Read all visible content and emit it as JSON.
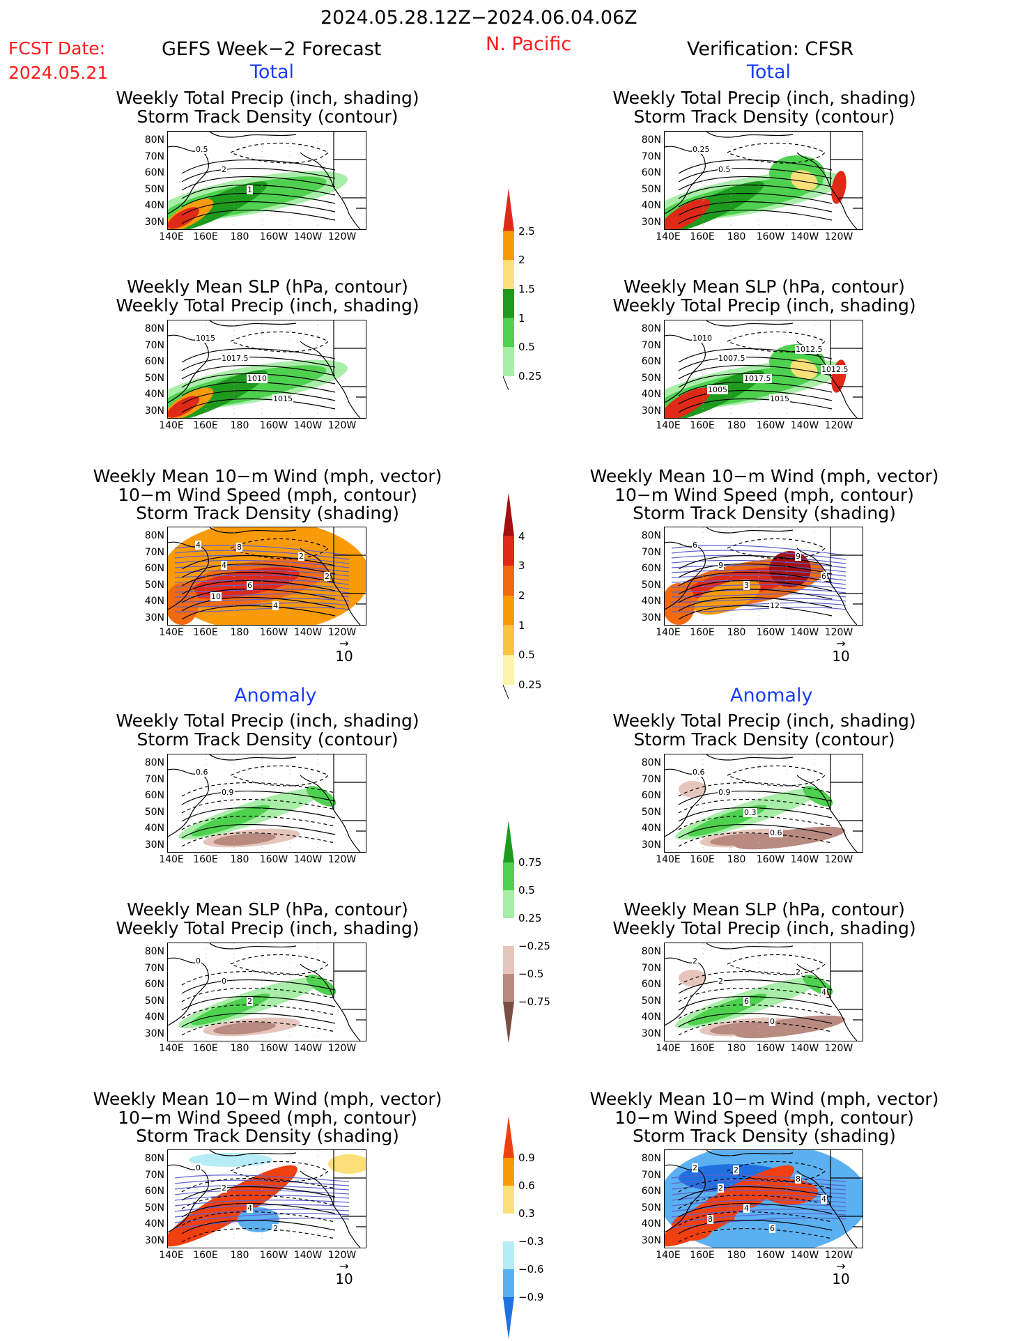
{
  "header": {
    "period": "2024.05.28.12Z−2024.06.04.06Z",
    "fcst_label": "FCST Date:",
    "fcst_date": "2024.05.21",
    "left_title": "GEFS Week−2 Forecast",
    "region": "N. Pacific",
    "right_title": "Verification: CFSR",
    "total": "Total",
    "anomaly": "Anomaly"
  },
  "panel_titles": {
    "precip_storm": [
      "Weekly Total Precip (inch, shading)",
      "Storm Track Density (contour)"
    ],
    "slp_precip": [
      "Weekly Mean SLP (hPa, contour)",
      "Weekly Total Precip (inch, shading)"
    ],
    "wind_storm": [
      "Weekly Mean 10−m Wind (mph, vector)",
      "10−m Wind Speed (mph, contour)",
      "Storm Track Density (shading)"
    ]
  },
  "axes": {
    "lat_labels": [
      "80N",
      "70N",
      "60N",
      "50N",
      "40N",
      "30N"
    ],
    "lon_labels": [
      "140E",
      "160E",
      "180",
      "160W",
      "140W",
      "120W"
    ]
  },
  "vector_ref": "10",
  "colorbars": {
    "precip_total": {
      "labels": [
        "2.5",
        "2",
        "1.5",
        "1",
        "0.5",
        "0.25"
      ],
      "colors": [
        "#e02a18",
        "#f99a08",
        "#fbe07a",
        "#1e9a1e",
        "#4ed14e",
        "#a8eea8"
      ]
    },
    "storm_total": {
      "labels": [
        "4",
        "3",
        "2",
        "1",
        "0.5",
        "0.25"
      ],
      "colors": [
        "#a50f0f",
        "#e02a18",
        "#f26a10",
        "#f99a08",
        "#fbc43c",
        "#fdf3a8"
      ]
    },
    "precip_anom": {
      "labels": [
        "0.75",
        "0.5",
        "0.25",
        "−0.25",
        "−0.5",
        "−0.75"
      ],
      "colors": [
        "#1e9a1e",
        "#4ed14e",
        "#a8eea8",
        "#ffffff",
        "#e6c6bc",
        "#b88a80",
        "#7a4e44"
      ]
    },
    "storm_anom": {
      "labels": [
        "0.9",
        "0.6",
        "0.3",
        "−0.3",
        "−0.6",
        "−0.9"
      ],
      "colors": [
        "#f04010",
        "#f99a08",
        "#fbe07a",
        "#ffffff",
        "#b6ecf6",
        "#5ab0f0",
        "#2070e0"
      ]
    }
  },
  "contour_labels": {
    "gefs_precip_total": [
      "0.5",
      "2",
      "1"
    ],
    "cfsr_precip_total": [
      "0.25",
      "0.5"
    ],
    "gefs_slp_total": [
      "1015",
      "1017.5",
      "1010",
      "1015"
    ],
    "cfsr_slp_total": [
      "1010",
      "1007.5",
      "1017.5",
      "1015",
      "1012.5",
      "1012.5",
      "1005"
    ],
    "gefs_wind_total": [
      "4",
      "4",
      "6",
      "4",
      "2",
      "2",
      "10",
      "8"
    ],
    "cfsr_wind_total": [
      "6",
      "9",
      "3",
      "12",
      "9",
      "6"
    ],
    "gefs_precip_anom": [
      "0.6",
      "0.9"
    ],
    "cfsr_precip_anom": [
      "0.6",
      "0.9",
      "0.3",
      "0.6"
    ],
    "gefs_slp_anom": [
      "0",
      "0",
      "2"
    ],
    "cfsr_slp_anom": [
      "2",
      "2",
      "6",
      "0",
      "2",
      "4"
    ],
    "gefs_wind_anom": [
      "0",
      "2",
      "4",
      "2"
    ],
    "cfsr_wind_anom": [
      "2",
      "2",
      "4",
      "6",
      "8",
      "4",
      "8",
      "2"
    ]
  }
}
